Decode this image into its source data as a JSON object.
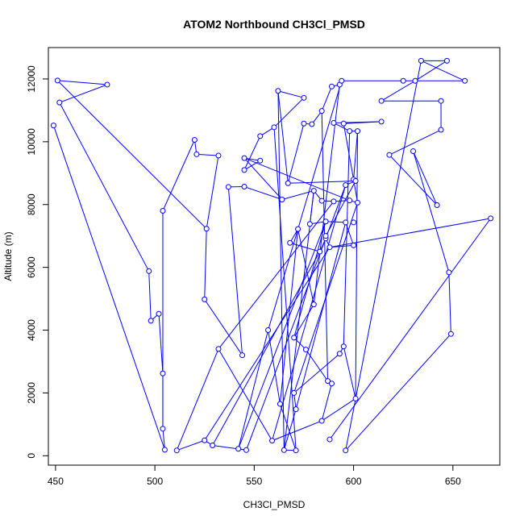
{
  "chart_data": {
    "type": "scatter",
    "title": "ATOM2 Northbound CH3Cl_PMSD",
    "xlabel": "CH3Cl_PMSD",
    "ylabel": "Altitude (m)",
    "xlim": [
      446.4,
      673.6
    ],
    "ylim": [
      -300,
      13000
    ],
    "xticks": [
      450,
      500,
      550,
      600,
      650
    ],
    "yticks": [
      0,
      2000,
      4000,
      6000,
      8000,
      10000,
      12000
    ],
    "series_color": "#0000ff",
    "connected": true,
    "points": [
      {
        "x": 451,
        "y": 11950
      },
      {
        "x": 476,
        "y": 11820
      },
      {
        "x": 452,
        "y": 11250
      },
      {
        "x": 497,
        "y": 5880
      },
      {
        "x": 498,
        "y": 4300
      },
      {
        "x": 502,
        "y": 4520
      },
      {
        "x": 504,
        "y": 2620
      },
      {
        "x": 504,
        "y": 860
      },
      {
        "x": 505,
        "y": 190
      },
      {
        "x": 449,
        "y": 10520
      },
      {
        "x": 504,
        "y": 7800
      },
      {
        "x": 520,
        "y": 10060
      },
      {
        "x": 521,
        "y": 9600
      },
      {
        "x": 532,
        "y": 9560
      },
      {
        "x": 526,
        "y": 7230
      },
      {
        "x": 525,
        "y": 4980
      },
      {
        "x": 544,
        "y": 3200
      },
      {
        "x": 537,
        "y": 8560
      },
      {
        "x": 545,
        "y": 8570
      },
      {
        "x": 564,
        "y": 8160
      },
      {
        "x": 545,
        "y": 9480
      },
      {
        "x": 553,
        "y": 9400
      },
      {
        "x": 545,
        "y": 9100
      },
      {
        "x": 553,
        "y": 10180
      },
      {
        "x": 560,
        "y": 10460
      },
      {
        "x": 575,
        "y": 11400
      },
      {
        "x": 562,
        "y": 11620
      },
      {
        "x": 567,
        "y": 8680
      },
      {
        "x": 575,
        "y": 10580
      },
      {
        "x": 579,
        "y": 10560
      },
      {
        "x": 584,
        "y": 10980
      },
      {
        "x": 589,
        "y": 11760
      },
      {
        "x": 593,
        "y": 11820
      },
      {
        "x": 594,
        "y": 11940
      },
      {
        "x": 625,
        "y": 11940
      },
      {
        "x": 656,
        "y": 11940
      },
      {
        "x": 634,
        "y": 12580
      },
      {
        "x": 647,
        "y": 12580
      },
      {
        "x": 631,
        "y": 11940
      },
      {
        "x": 614,
        "y": 11300
      },
      {
        "x": 644,
        "y": 11300
      },
      {
        "x": 644,
        "y": 10380
      },
      {
        "x": 618,
        "y": 9580
      },
      {
        "x": 642,
        "y": 7980
      },
      {
        "x": 630,
        "y": 9700
      },
      {
        "x": 648,
        "y": 5840
      },
      {
        "x": 649,
        "y": 3880
      },
      {
        "x": 596,
        "y": 170
      },
      {
        "x": 669,
        "y": 7560
      },
      {
        "x": 588,
        "y": 520
      },
      {
        "x": 595,
        "y": 10580
      },
      {
        "x": 614,
        "y": 10640
      },
      {
        "x": 590,
        "y": 10600
      },
      {
        "x": 598,
        "y": 10340
      },
      {
        "x": 602,
        "y": 10340
      },
      {
        "x": 600,
        "y": 8800
      },
      {
        "x": 602,
        "y": 8060
      },
      {
        "x": 598,
        "y": 8130
      },
      {
        "x": 590,
        "y": 8100
      },
      {
        "x": 584,
        "y": 8120
      },
      {
        "x": 580,
        "y": 8440
      },
      {
        "x": 578,
        "y": 7380
      },
      {
        "x": 586,
        "y": 7460
      },
      {
        "x": 596,
        "y": 7430
      },
      {
        "x": 600,
        "y": 6700
      },
      {
        "x": 588,
        "y": 6640
      },
      {
        "x": 586,
        "y": 6920
      },
      {
        "x": 583,
        "y": 6500
      },
      {
        "x": 568,
        "y": 6780
      },
      {
        "x": 572,
        "y": 7220
      },
      {
        "x": 580,
        "y": 4820
      },
      {
        "x": 570,
        "y": 3760
      },
      {
        "x": 576,
        "y": 3380
      },
      {
        "x": 587,
        "y": 2380
      },
      {
        "x": 589,
        "y": 2300
      },
      {
        "x": 584,
        "y": 1110
      },
      {
        "x": 601,
        "y": 1820
      },
      {
        "x": 595,
        "y": 3480
      },
      {
        "x": 593,
        "y": 3250
      },
      {
        "x": 570,
        "y": 2000
      },
      {
        "x": 571,
        "y": 1480
      },
      {
        "x": 565,
        "y": 180
      },
      {
        "x": 571,
        "y": 170
      },
      {
        "x": 563,
        "y": 1650
      },
      {
        "x": 557,
        "y": 4000
      },
      {
        "x": 542,
        "y": 220
      },
      {
        "x": 546,
        "y": 180
      },
      {
        "x": 529,
        "y": 330
      },
      {
        "x": 525,
        "y": 490
      },
      {
        "x": 511,
        "y": 170
      },
      {
        "x": 532,
        "y": 3400
      },
      {
        "x": 559,
        "y": 480
      },
      {
        "x": 596,
        "y": 8620
      },
      {
        "x": 601,
        "y": 8750
      },
      {
        "x": 586,
        "y": 7000
      },
      {
        "x": 600,
        "y": 7430
      }
    ],
    "segments": [
      [
        0,
        1
      ],
      [
        1,
        2
      ],
      [
        2,
        3
      ],
      [
        3,
        4
      ],
      [
        4,
        5
      ],
      [
        5,
        6
      ],
      [
        6,
        7
      ],
      [
        7,
        8
      ],
      [
        8,
        9
      ],
      [
        0,
        14
      ],
      [
        14,
        15
      ],
      [
        15,
        16
      ],
      [
        16,
        17
      ],
      [
        17,
        18
      ],
      [
        18,
        19
      ],
      [
        19,
        20
      ],
      [
        20,
        21
      ],
      [
        21,
        22
      ],
      [
        10,
        11
      ],
      [
        11,
        12
      ],
      [
        12,
        13
      ],
      [
        13,
        14
      ],
      [
        10,
        7
      ],
      [
        22,
        23
      ],
      [
        23,
        24
      ],
      [
        24,
        25
      ],
      [
        25,
        26
      ],
      [
        26,
        27
      ],
      [
        27,
        28
      ],
      [
        28,
        29
      ],
      [
        29,
        30
      ],
      [
        30,
        31
      ],
      [
        31,
        32
      ],
      [
        32,
        33
      ],
      [
        33,
        34
      ],
      [
        34,
        35
      ],
      [
        35,
        36
      ],
      [
        36,
        37
      ],
      [
        37,
        38
      ],
      [
        38,
        39
      ],
      [
        39,
        40
      ],
      [
        40,
        41
      ],
      [
        41,
        42
      ],
      [
        42,
        43
      ],
      [
        43,
        44
      ],
      [
        44,
        45
      ],
      [
        45,
        46
      ],
      [
        46,
        47
      ],
      [
        48,
        49
      ],
      [
        48,
        65
      ],
      [
        50,
        51
      ],
      [
        51,
        52
      ],
      [
        52,
        53
      ],
      [
        53,
        54
      ],
      [
        54,
        55
      ],
      [
        55,
        56
      ],
      [
        56,
        57
      ],
      [
        57,
        58
      ],
      [
        58,
        59
      ],
      [
        59,
        60
      ],
      [
        60,
        61
      ],
      [
        61,
        62
      ],
      [
        62,
        63
      ],
      [
        63,
        64
      ],
      [
        64,
        65
      ],
      [
        65,
        66
      ],
      [
        66,
        67
      ],
      [
        67,
        68
      ],
      [
        68,
        69
      ],
      [
        69,
        70
      ],
      [
        70,
        71
      ],
      [
        71,
        72
      ],
      [
        72,
        73
      ],
      [
        73,
        74
      ],
      [
        74,
        75
      ],
      [
        75,
        76
      ],
      [
        76,
        77
      ],
      [
        77,
        78
      ],
      [
        78,
        79
      ],
      [
        79,
        80
      ],
      [
        80,
        81
      ],
      [
        81,
        82
      ],
      [
        82,
        83
      ],
      [
        83,
        84
      ],
      [
        84,
        85
      ],
      [
        85,
        86
      ],
      [
        86,
        87
      ],
      [
        87,
        88
      ],
      [
        88,
        89
      ],
      [
        89,
        90
      ],
      [
        90,
        91
      ],
      [
        91,
        92
      ],
      [
        92,
        93
      ],
      [
        93,
        94
      ],
      [
        20,
        57
      ],
      [
        19,
        60
      ],
      [
        27,
        93
      ],
      [
        50,
        55
      ],
      [
        53,
        77
      ],
      [
        54,
        76
      ],
      [
        56,
        79
      ],
      [
        60,
        81
      ],
      [
        62,
        85
      ],
      [
        65,
        88
      ],
      [
        67,
        87
      ],
      [
        69,
        83
      ],
      [
        92,
        86
      ],
      [
        91,
        75
      ],
      [
        62,
        71
      ],
      [
        24,
        82
      ],
      [
        33,
        84
      ],
      [
        58,
        90
      ],
      [
        63,
        80
      ],
      [
        26,
        81
      ],
      [
        32,
        70
      ],
      [
        30,
        73
      ],
      [
        36,
        47
      ]
    ]
  }
}
